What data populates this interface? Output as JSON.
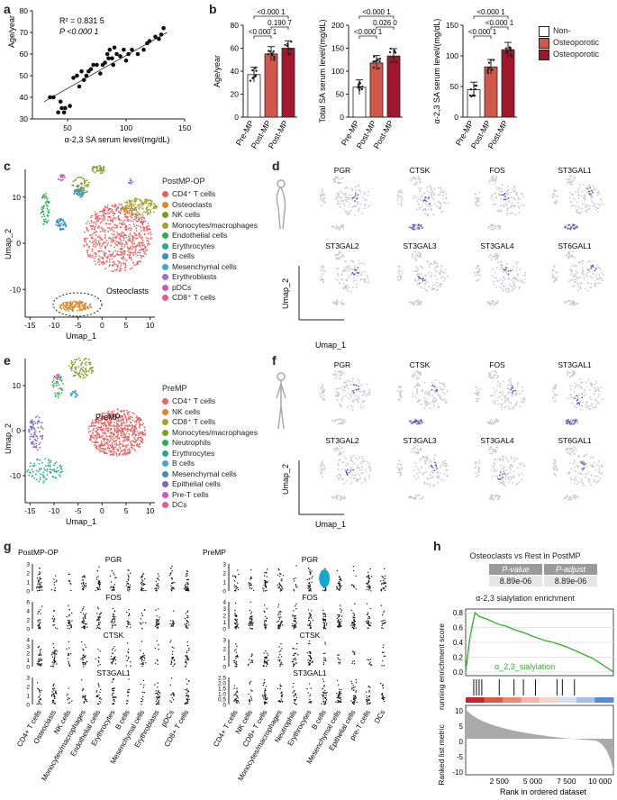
{
  "panels": {
    "a": "a",
    "b": "b",
    "c": "c",
    "d": "d",
    "e": "e",
    "f": "f",
    "g": "g",
    "h": "h"
  },
  "panel_a": {
    "r2": "R² = 0.831 5",
    "p": "P <0.000 1",
    "xlabel": "α-2,3 SA serum level/(mg/dL)",
    "ylabel": "Age/year",
    "xticks": [
      "50",
      "100",
      "150"
    ],
    "yticks": [
      "30",
      "40",
      "50",
      "60",
      "70",
      "80"
    ]
  },
  "panel_b": {
    "legend": [
      {
        "label": "Non-",
        "color": "#ffffff"
      },
      {
        "label": "Osteoporotic",
        "color": "#d0574a"
      },
      {
        "label": "Osteoporotic",
        "color": "#a3172c"
      }
    ],
    "groups": [
      "Pre-MP",
      "Post-MP",
      "Post-MP"
    ],
    "plots": [
      {
        "ylabel": "Age/year",
        "yticks": [
          "0",
          "20",
          "40",
          "60",
          "80"
        ],
        "comparisons": [
          "<0.000 1",
          "0.190 7",
          "<0.000 1"
        ]
      },
      {
        "ylabel": "Total SA serum level/(mg/dL)",
        "yticks": [
          "0",
          "50",
          "100",
          "150",
          "200"
        ],
        "comparisons": [
          "<0.000 1",
          "0.026 0",
          "<0.000 1"
        ]
      },
      {
        "ylabel": "α-2,3 SA serum level/(mg/dL)",
        "yticks": [
          "0",
          "50",
          "100",
          "150"
        ],
        "comparisons": [
          "<0.000 1",
          "<0.000 1",
          "<0.000 1"
        ]
      }
    ]
  },
  "panel_c": {
    "title": "PostMP-OP",
    "annotation": "Osteoclasts",
    "xlabel": "Umap_1",
    "ylabel": "Umap_2",
    "xticks": [
      "-15",
      "-10",
      "-5",
      "0",
      "5",
      "10"
    ],
    "yticks": [
      "10",
      "0",
      "-10"
    ],
    "legend": [
      {
        "label": "CD4⁺ T cells",
        "color": "#e86464"
      },
      {
        "label": "Osteoclasts",
        "color": "#d9892a"
      },
      {
        "label": "NK cells",
        "color": "#7a9a2a"
      },
      {
        "label": "Monocytes/macrophages",
        "color": "#a5a233"
      },
      {
        "label": "Endothelial cells",
        "color": "#2fad55"
      },
      {
        "label": "Erythrocytes",
        "color": "#2aaa8a"
      },
      {
        "label": "B cells",
        "color": "#3a8fc0"
      },
      {
        "label": "Mesenchymal cells",
        "color": "#3aa8d8"
      },
      {
        "label": "Erythroblasts",
        "color": "#9a70c8"
      },
      {
        "label": "pDCs",
        "color": "#c85ab8"
      },
      {
        "label": "CD8⁺ T cells",
        "color": "#e85a8a"
      }
    ]
  },
  "panel_d": {
    "genes": [
      "PGR",
      "CTSK",
      "FOS",
      "ST3GAL1",
      "ST3GAL2",
      "ST3GAL3",
      "ST3GAL4",
      "ST6GAL1"
    ],
    "xlabel": "Umap_1",
    "ylabel": "Umap_2"
  },
  "panel_e": {
    "title": "PreMP",
    "annotation": "PreMP",
    "xlabel": "Umap_1",
    "ylabel": "Umap_2",
    "xticks": [
      "-15",
      "-10",
      "-5",
      "0",
      "5",
      "10"
    ],
    "yticks": [
      "10",
      "0",
      "-10"
    ],
    "legend": [
      {
        "label": "CD4⁺ T cells",
        "color": "#e86464"
      },
      {
        "label": "NK cells",
        "color": "#d9892a"
      },
      {
        "label": "CD8⁺ T cells",
        "color": "#a5a233"
      },
      {
        "label": "Monocytes/macrophages",
        "color": "#7aa02a"
      },
      {
        "label": "Neutrophils",
        "color": "#2fad55"
      },
      {
        "label": "Erythrocytes",
        "color": "#2aaa8a"
      },
      {
        "label": "B cells",
        "color": "#3aa8d8"
      },
      {
        "label": "Mesenchymal cells",
        "color": "#3a8fc0"
      },
      {
        "label": "Epithelial cells",
        "color": "#7a6ac0"
      },
      {
        "label": "Pre-T cells",
        "color": "#c85ab8"
      },
      {
        "label": "DCs",
        "color": "#e85a8a"
      }
    ]
  },
  "panel_f": {
    "genes": [
      "PGR",
      "CTSK",
      "FOS",
      "ST3GAL1",
      "ST3GAL2",
      "ST3GAL3",
      "ST3GAL4",
      "ST6GAL1"
    ],
    "xlabel": "Umap_1",
    "ylabel": "Umap_2"
  },
  "panel_g": {
    "left": {
      "title": "PostMP-OP",
      "genes": [
        "PGR",
        "FOS",
        "CTSK",
        "ST3GAL1"
      ],
      "yticks": [
        [
          "0",
          "1",
          "2",
          "3"
        ],
        [
          "0",
          "2",
          "4",
          "6"
        ],
        [
          "0",
          "1",
          "2",
          "3",
          "4"
        ],
        [
          "0",
          "1",
          "2",
          "3"
        ]
      ],
      "celltypes": [
        "CD4+ T cells",
        "Osteoclasts",
        "NK cells",
        "Monocytes/macrophages",
        "Endothelial cells",
        "Erythrocytes",
        "B cells",
        "Mesenchymal cells",
        "Erythroblasts",
        "pDCs",
        "CD8+ T cells"
      ]
    },
    "right": {
      "title": "PreMP",
      "genes": [
        "PGR",
        "FOS",
        "CTSK",
        "ST3GAL1"
      ],
      "yticks": [
        [
          "0",
          "1",
          "2",
          "3"
        ],
        [
          "0",
          "1",
          "2",
          "3",
          "4"
        ],
        [
          "0",
          "1",
          "2",
          "3"
        ],
        [
          "0",
          "0.5",
          "1.0",
          "1.5",
          "2.0",
          "2.5"
        ]
      ],
      "celltypes": [
        "CD4+ T cells",
        "NK cells",
        "CD8+ T cells",
        "Monocytes/macrophages",
        "Neutrophils",
        "Erythrocytes",
        "B cells",
        "Mesenchymal cells",
        "Epithelial cells",
        "pre-T cells",
        "DCs"
      ]
    }
  },
  "panel_h": {
    "title": "Osteoclasts vs Rest in PostMP",
    "col1": "P-value",
    "col2": "P-adjust",
    "val1": "8.89e-06",
    "val2": "8.89e-06",
    "subtitle": "α-2,3 sialylation enrichment",
    "series_label": "α_2,3_sialylation",
    "ylabel_top": "running enrichment score",
    "ylabel_bottom": "Ranked list metric",
    "xlabel": "Rank in ordered dataset",
    "yticks_top": [
      "0.0",
      "0.2",
      "0.4",
      "0.6",
      "0.8"
    ],
    "yticks_bottom": [
      "10",
      "5",
      "0",
      "-5",
      "-10"
    ],
    "xticks": [
      "2 500",
      "5 000",
      "7 500",
      "10 000"
    ]
  },
  "chart_data": [
    {
      "type": "scatter",
      "panel": "a",
      "title": "",
      "xlabel": "α-2,3 SA serum level/(mg/dL)",
      "ylabel": "Age/year",
      "xlim": [
        20,
        150
      ],
      "ylim": [
        30,
        80
      ],
      "x": [
        35,
        38,
        42,
        44,
        45,
        47,
        48,
        52,
        55,
        58,
        60,
        62,
        64,
        66,
        68,
        70,
        72,
        75,
        78,
        80,
        82,
        84,
        85,
        86,
        88,
        89,
        90,
        92,
        95,
        98,
        100,
        102,
        105,
        110,
        115,
        118,
        120,
        125,
        128,
        130,
        132
      ],
      "y": [
        40,
        40,
        33,
        38,
        35,
        33,
        35,
        36,
        49,
        50,
        45,
        52,
        48,
        50,
        52,
        53,
        55,
        55,
        51,
        55,
        56,
        60,
        58,
        62,
        58,
        55,
        63,
        60,
        59,
        62,
        57,
        60,
        62,
        60,
        62,
        65,
        66,
        68,
        67,
        69,
        72
      ]
    },
    {
      "type": "bar",
      "panel": "b1",
      "categories": [
        "Pre-MP",
        "Post-MP",
        "Post-MP"
      ],
      "values": [
        37,
        55,
        60
      ],
      "ylabel": "Age/year",
      "ylim": [
        0,
        80
      ]
    },
    {
      "type": "bar",
      "panel": "b2",
      "categories": [
        "Pre-MP",
        "Post-MP",
        "Post-MP"
      ],
      "values": [
        65,
        118,
        133
      ],
      "ylabel": "Total SA serum level/(mg/dL)",
      "ylim": [
        0,
        200
      ]
    },
    {
      "type": "bar",
      "panel": "b3",
      "categories": [
        "Pre-MP",
        "Post-MP",
        "Post-MP"
      ],
      "values": [
        45,
        82,
        110
      ],
      "ylabel": "α-2,3 SA serum level/(mg/dL)",
      "ylim": [
        0,
        150
      ]
    },
    {
      "type": "line",
      "panel": "h",
      "xlabel": "Rank in ordered dataset",
      "ylabel": "running enrichment score",
      "xlim": [
        0,
        11000
      ],
      "ylim": [
        -0.05,
        0.85
      ],
      "x": [
        0,
        300,
        600,
        700,
        1000,
        1500,
        2000,
        2500,
        3000,
        3500,
        4000,
        4500,
        5000,
        5500,
        6000,
        6500,
        7000,
        7500,
        8000,
        8500,
        9000,
        9500,
        10000,
        10500,
        11000
      ],
      "y": [
        0.0,
        0.45,
        0.72,
        0.8,
        0.75,
        0.72,
        0.68,
        0.64,
        0.62,
        0.58,
        0.55,
        0.52,
        0.48,
        0.45,
        0.42,
        0.4,
        0.37,
        0.34,
        0.3,
        0.26,
        0.22,
        0.18,
        0.12,
        0.06,
        0.0
      ]
    }
  ]
}
